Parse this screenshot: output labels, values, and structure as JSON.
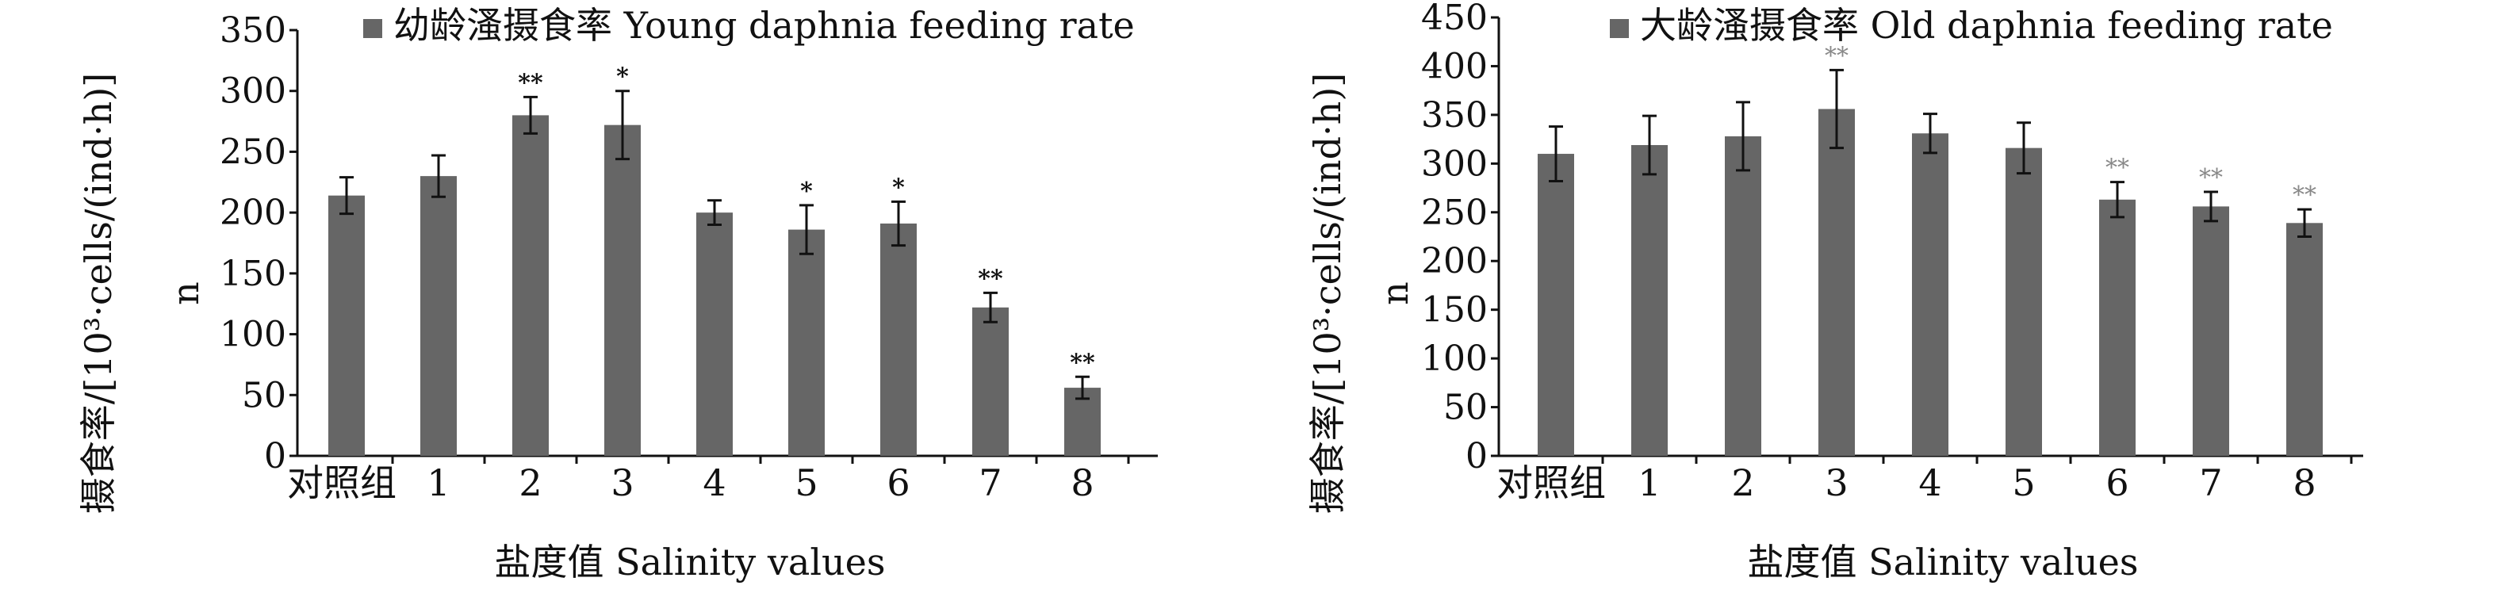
{
  "chart_data": [
    {
      "type": "bar",
      "categories": [
        "对照组",
        "1",
        "2",
        "3",
        "4",
        "5",
        "6",
        "7",
        "8"
      ],
      "series": [
        {
          "name": "幼龄溞摄食率 Young daphnia feeding rate",
          "values": [
            214,
            230,
            280,
            272,
            200,
            186,
            191,
            122,
            56
          ],
          "errors": [
            15,
            17,
            15,
            28,
            10,
            20,
            18,
            12,
            9
          ],
          "significance": [
            "",
            "",
            "**",
            "*",
            "",
            "*",
            "*",
            "**",
            "**"
          ]
        }
      ],
      "xlabel": "盐度值 Salinity values",
      "ylabel": "摄食率/[10³·cells/(ind·h)]",
      "ylabel_extra": "n",
      "ylim": [
        0,
        350
      ],
      "yticks": [
        0,
        50,
        100,
        150,
        200,
        250,
        300,
        350
      ],
      "bar_color": "#666666",
      "significance_color": "#111111"
    },
    {
      "type": "bar",
      "categories": [
        "对照组",
        "1",
        "2",
        "3",
        "4",
        "5",
        "6",
        "7",
        "8"
      ],
      "series": [
        {
          "name": "大龄溞摄食率 Old daphnia feeding rate",
          "values": [
            310,
            319,
            328,
            356,
            331,
            316,
            263,
            256,
            239
          ],
          "errors": [
            28,
            30,
            35,
            40,
            20,
            26,
            18,
            15,
            14
          ],
          "significance": [
            "",
            "",
            "",
            "**",
            "",
            "",
            "**",
            "**",
            "**"
          ]
        }
      ],
      "xlabel": "盐度值 Salinity values",
      "ylabel": "摄食率/[10³·cells/(ind·h)]",
      "ylabel_extra": "n",
      "ylim": [
        0,
        450
      ],
      "yticks": [
        0,
        50,
        100,
        150,
        200,
        250,
        300,
        350,
        400,
        450
      ],
      "bar_color": "#666666",
      "significance_color": "#888888"
    }
  ]
}
